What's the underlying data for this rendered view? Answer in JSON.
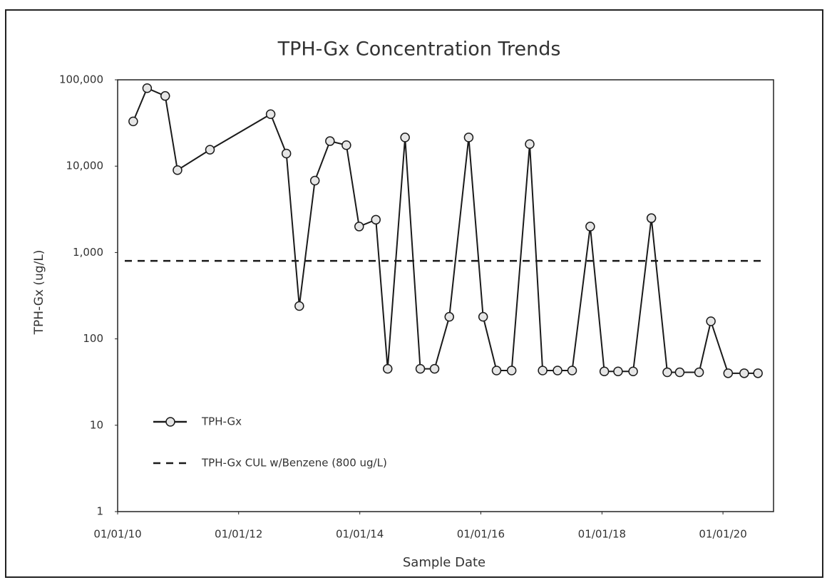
{
  "chart_data": {
    "type": "line",
    "title": "TPH-Gx Concentration Trends",
    "xlabel": "Sample Date",
    "ylabel": "TPH-Gx (ug/L)",
    "log_y": true,
    "ylim": [
      1,
      100000
    ],
    "yticks": [
      1,
      10,
      100,
      {
        "value": 1000,
        "label": "1,000"
      },
      {
        "value": 10000,
        "label": "10,000"
      },
      {
        "value": 100000,
        "label": "100,000"
      }
    ],
    "xlim": [
      "2010-01-01",
      "2020-11-01"
    ],
    "xticks": [
      {
        "value": "2010-01-01",
        "label": "01/01/10"
      },
      {
        "value": "2012-01-01",
        "label": "01/01/12"
      },
      {
        "value": "2014-01-01",
        "label": "01/01/14"
      },
      {
        "value": "2016-01-01",
        "label": "01/01/16"
      },
      {
        "value": "2018-01-01",
        "label": "01/01/18"
      },
      {
        "value": "2020-01-01",
        "label": "01/01/20"
      }
    ],
    "legend": "lower left",
    "series": [
      {
        "name": "TPH-Gx",
        "color": "#1a1a1a",
        "x": [
          "2010-04-05",
          "2010-06-28",
          "2010-10-15",
          "2010-12-28",
          "2011-07-12",
          "2012-07-12",
          "2012-10-15",
          "2013-01-01",
          "2013-04-05",
          "2013-07-05",
          "2013-10-12",
          "2013-12-28",
          "2014-04-08",
          "2014-06-18",
          "2014-10-01",
          "2015-01-01",
          "2015-03-28",
          "2015-06-25",
          "2015-10-20",
          "2016-01-15",
          "2016-04-05",
          "2016-07-05",
          "2016-10-22",
          "2017-01-08",
          "2017-04-08",
          "2017-07-05",
          "2017-10-22",
          "2018-01-15",
          "2018-04-08",
          "2018-07-08",
          "2018-10-26",
          "2019-01-30",
          "2019-04-15",
          "2019-08-10",
          "2019-10-20",
          "2020-02-01",
          "2020-05-08",
          "2020-07-30"
        ],
        "values": [
          33000,
          80000,
          65000,
          9000,
          15500,
          40000,
          14000,
          240,
          6800,
          19500,
          17500,
          2000,
          2400,
          45,
          21500,
          45,
          45,
          180,
          21500,
          180,
          43,
          43,
          18000,
          43,
          43,
          43,
          2000,
          42,
          42,
          42,
          2500,
          41,
          41,
          41,
          160,
          40,
          40,
          40
        ]
      },
      {
        "name": "TPH-Gx CUL w/Benzene (800 ug/L)",
        "color": "#1a1a1a",
        "dashed": true,
        "threshold": 800
      }
    ]
  }
}
